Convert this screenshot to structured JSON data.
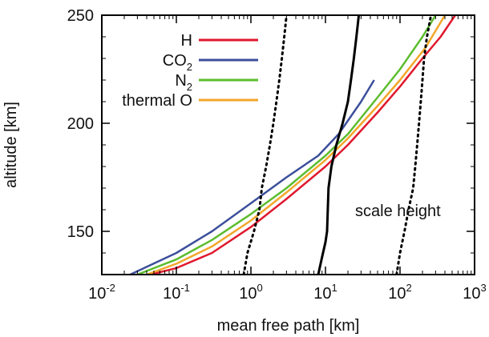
{
  "chart_data": {
    "type": "line",
    "xlabel": "mean free path [km]",
    "ylabel": "altitude [km]",
    "xscale": "log",
    "xlim": [
      0.01,
      1000
    ],
    "ylim": [
      130,
      250
    ],
    "x_ticks": [
      {
        "base": "10",
        "exp": "-2"
      },
      {
        "base": "10",
        "exp": "-1"
      },
      {
        "base": "10",
        "exp": "0"
      },
      {
        "base": "10",
        "exp": "1"
      },
      {
        "base": "10",
        "exp": "2"
      },
      {
        "base": "10",
        "exp": "3"
      }
    ],
    "y_ticks": [
      "150",
      "200",
      "250"
    ],
    "legend_position": "top-left",
    "series": [
      {
        "name": "H",
        "color": "#e0182d",
        "style": "solid",
        "points": [
          [
            0.045,
            130
          ],
          [
            0.1,
            133
          ],
          [
            0.3,
            140
          ],
          [
            1,
            152
          ],
          [
            3,
            165
          ],
          [
            10,
            180
          ],
          [
            20,
            190
          ],
          [
            50,
            205
          ],
          [
            100,
            217
          ],
          [
            200,
            230
          ],
          [
            350,
            240
          ],
          [
            550,
            250
          ]
        ]
      },
      {
        "name": "CO2",
        "name_base": "CO",
        "name_sub": "2",
        "color": "#3c4f9b",
        "style": "solid",
        "points": [
          [
            0.024,
            130
          ],
          [
            0.1,
            140
          ],
          [
            0.3,
            150
          ],
          [
            1,
            163
          ],
          [
            3,
            175
          ],
          [
            8,
            185
          ],
          [
            15,
            195
          ],
          [
            30,
            210
          ],
          [
            45,
            220
          ]
        ]
      },
      {
        "name": "N2",
        "name_base": "N",
        "name_sub": "2",
        "color": "#5cbd2e",
        "style": "solid",
        "points": [
          [
            0.03,
            130
          ],
          [
            0.1,
            137
          ],
          [
            0.3,
            146
          ],
          [
            1,
            158
          ],
          [
            3,
            170
          ],
          [
            10,
            185
          ],
          [
            20,
            195
          ],
          [
            50,
            212
          ],
          [
            100,
            225
          ],
          [
            200,
            240
          ],
          [
            300,
            250
          ]
        ]
      },
      {
        "name": "thermal O",
        "color": "#f2a72a",
        "style": "solid",
        "points": [
          [
            0.04,
            130
          ],
          [
            0.1,
            135
          ],
          [
            0.3,
            143
          ],
          [
            1,
            155
          ],
          [
            3,
            168
          ],
          [
            10,
            183
          ],
          [
            20,
            193
          ],
          [
            50,
            208
          ],
          [
            100,
            220
          ],
          [
            220,
            235
          ],
          [
            400,
            250
          ]
        ]
      },
      {
        "name": "",
        "color": "#000000",
        "style": "dotted",
        "points": [
          [
            0.8,
            130
          ],
          [
            0.9,
            140
          ],
          [
            1.1,
            150
          ],
          [
            1.3,
            160
          ],
          [
            1.4,
            170
          ],
          [
            1.6,
            180
          ],
          [
            1.8,
            190
          ],
          [
            2.0,
            200
          ],
          [
            2.2,
            210
          ],
          [
            2.4,
            220
          ],
          [
            2.6,
            230
          ],
          [
            2.8,
            240
          ],
          [
            3.0,
            250
          ]
        ]
      },
      {
        "name": "",
        "color": "#000000",
        "style": "solid",
        "points": [
          [
            8,
            130
          ],
          [
            9,
            138
          ],
          [
            10,
            145
          ],
          [
            10.5,
            150
          ],
          [
            11,
            170
          ],
          [
            12,
            180
          ],
          [
            14,
            190
          ],
          [
            17,
            200
          ],
          [
            20,
            210
          ],
          [
            22,
            220
          ],
          [
            24,
            230
          ],
          [
            26,
            240
          ],
          [
            28,
            250
          ]
        ]
      },
      {
        "name": "",
        "color": "#000000",
        "style": "dotted",
        "points": [
          [
            90,
            130
          ],
          [
            100,
            140
          ],
          [
            115,
            150
          ],
          [
            130,
            160
          ],
          [
            150,
            170
          ],
          [
            160,
            180
          ],
          [
            170,
            190
          ],
          [
            180,
            200
          ],
          [
            190,
            210
          ],
          [
            200,
            220
          ],
          [
            210,
            230
          ],
          [
            230,
            240
          ],
          [
            260,
            250
          ]
        ]
      }
    ],
    "annotations": [
      {
        "text": "scale height",
        "x": 25,
        "y": 157
      }
    ]
  }
}
